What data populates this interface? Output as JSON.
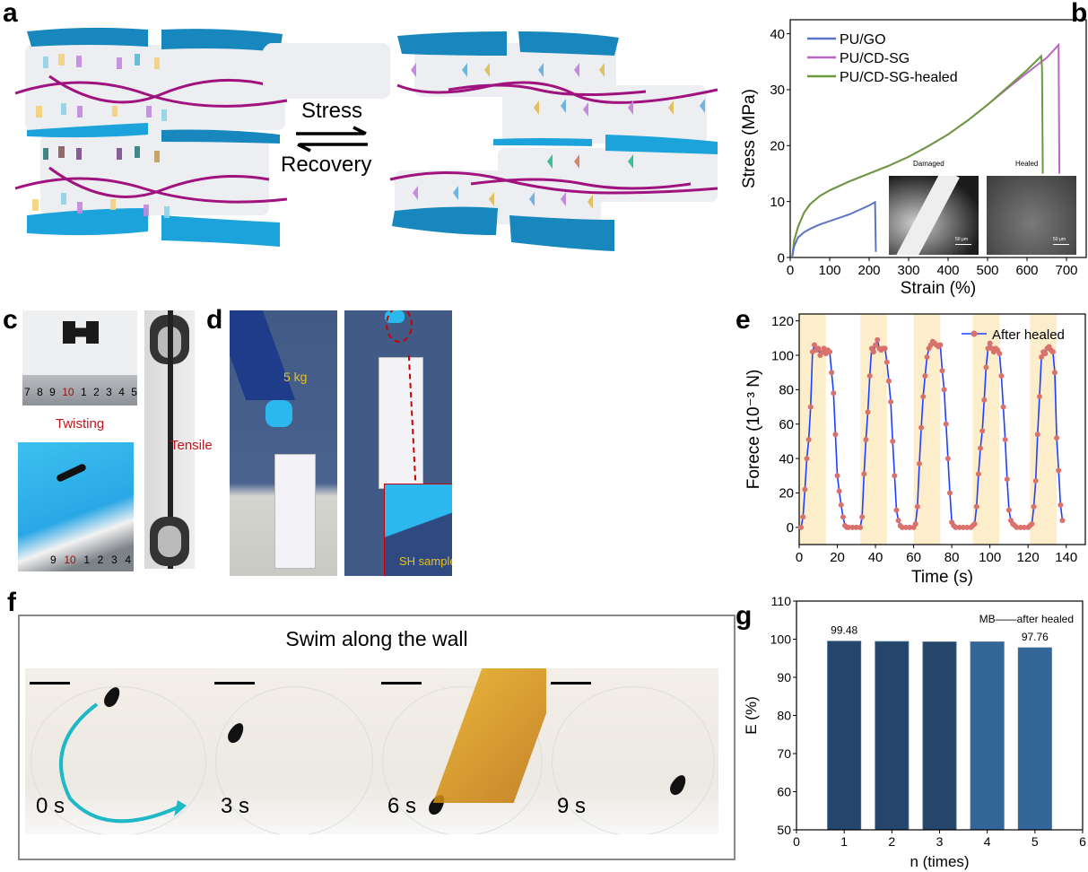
{
  "panels": {
    "a": {
      "label": "a",
      "arrow_top": "Stress",
      "arrow_bottom": "Recovery"
    },
    "b": {
      "label": "b",
      "inset_damaged": "Damaged",
      "inset_healed": "Healed",
      "scale_bar": "50 μm"
    },
    "c": {
      "label": "c",
      "twisting": "Twisting",
      "tensile": "Tensile",
      "ruler_top": [
        "7",
        "8",
        "9",
        "10",
        "1",
        "2",
        "3",
        "4",
        "5"
      ],
      "ruler_bottom": [
        "9",
        "10",
        "1",
        "2",
        "3",
        "4"
      ]
    },
    "d": {
      "label": "d",
      "weight": "5 kg",
      "inset": "SH sample"
    },
    "e": {
      "label": "e"
    },
    "f": {
      "label": "f",
      "title": "Swim along the wall",
      "frames": [
        "0 s",
        "3 s",
        "6 s",
        "9 s"
      ]
    },
    "g": {
      "label": "g"
    }
  },
  "colors": {
    "pu_go": "#5b74c4",
    "pu_cd_sg": "#b866c2",
    "pu_cd_sg_healed": "#6b9a3c",
    "force_line": "#1f3fff",
    "force_marker": "#d9716c",
    "shade": "#fdeecb",
    "bar_dark": "#24466a",
    "bar_light": "#336699",
    "tape_blue": "#1a9ad6",
    "chain": "#a0127e"
  },
  "chart_data": [
    {
      "id": "b",
      "type": "line",
      "xlabel": "Strain (%)",
      "ylabel": "Stress (MPa)",
      "xlim": [
        0,
        750
      ],
      "ylim": [
        0,
        42.5
      ],
      "xticks": [
        0,
        100,
        200,
        300,
        400,
        500,
        600,
        700
      ],
      "yticks": [
        0,
        10,
        20,
        30,
        40
      ],
      "legend": "top-left",
      "series": [
        {
          "name": "PU/GO",
          "x": [
            5,
            10,
            20,
            35,
            50,
            75,
            100,
            150,
            200,
            215,
            217
          ],
          "y": [
            0,
            2,
            3.6,
            4.5,
            5.1,
            5.9,
            6.5,
            7.7,
            9.3,
            9.9,
            1
          ]
        },
        {
          "name": "PU/CD-SG",
          "x": [
            5,
            10,
            20,
            35,
            50,
            75,
            100,
            150,
            200,
            250,
            300,
            350,
            400,
            450,
            500,
            550,
            600,
            650,
            680,
            682
          ],
          "y": [
            0,
            3,
            5.5,
            8,
            9.5,
            11,
            12,
            13.6,
            15,
            16.4,
            18,
            19.9,
            22,
            24.5,
            27.3,
            30.2,
            33,
            35.7,
            38,
            15
          ]
        },
        {
          "name": "PU/CD-SG-healed",
          "x": [
            5,
            10,
            20,
            35,
            50,
            75,
            100,
            150,
            200,
            250,
            300,
            350,
            400,
            450,
            500,
            550,
            600,
            636,
            638,
            639,
            640
          ],
          "y": [
            0,
            3,
            5.5,
            8,
            9.5,
            11,
            12,
            13.6,
            15,
            16.4,
            18,
            19.9,
            22,
            24.5,
            27.3,
            30.4,
            33.5,
            36,
            34,
            25,
            15
          ]
        }
      ]
    },
    {
      "id": "e",
      "type": "line",
      "xlabel": "Time (s)",
      "ylabel": "Forece (10⁻³ N)",
      "xlim": [
        0,
        150
      ],
      "ylim": [
        -10,
        124
      ],
      "xticks": [
        0,
        20,
        40,
        60,
        80,
        100,
        120,
        140
      ],
      "yticks": [
        0,
        20,
        40,
        60,
        80,
        100,
        120
      ],
      "shaded_intervals": [
        [
          0,
          14
        ],
        [
          32,
          46
        ],
        [
          60,
          74
        ],
        [
          91,
          105
        ],
        [
          121,
          135
        ]
      ],
      "legend": "top-right",
      "series": [
        {
          "name": "After healed",
          "x": [
            1,
            2,
            3,
            4,
            5,
            6,
            7,
            8,
            9,
            10,
            11,
            12,
            13,
            14,
            15,
            16,
            17,
            18,
            19,
            20,
            21,
            22,
            23,
            24,
            25,
            26,
            28,
            30,
            32,
            33,
            34,
            35,
            36,
            37,
            38,
            39,
            40,
            41,
            42,
            43,
            44,
            45,
            46,
            47,
            48,
            49,
            50,
            51,
            52,
            53,
            54,
            56,
            58,
            60,
            61,
            62,
            63,
            64,
            65,
            66,
            67,
            68,
            69,
            70,
            71,
            72,
            73,
            74,
            75,
            76,
            77,
            78,
            79,
            80,
            81,
            82,
            84,
            86,
            88,
            90,
            91,
            92,
            93,
            94,
            95,
            96,
            97,
            98,
            99,
            100,
            101,
            102,
            103,
            104,
            105,
            106,
            107,
            108,
            109,
            110,
            111,
            112,
            113,
            114,
            116,
            118,
            120,
            121,
            122,
            123,
            124,
            125,
            126,
            127,
            128,
            129,
            130,
            131,
            132,
            133,
            134,
            135,
            136,
            137,
            138
          ],
          "y": [
            0,
            6,
            22,
            40,
            51,
            70,
            102,
            106,
            103,
            104,
            100,
            102,
            104,
            101,
            103,
            102,
            90,
            78,
            54,
            30,
            21,
            13,
            6,
            1,
            0,
            0,
            0,
            0,
            0,
            6,
            31,
            51,
            67,
            88,
            104,
            102,
            106,
            109,
            104,
            103,
            104,
            104,
            96,
            85,
            73,
            50,
            30,
            10,
            4,
            1,
            0,
            0,
            0,
            0,
            2,
            12,
            37,
            58,
            76,
            88,
            99,
            104,
            106,
            108,
            107,
            106,
            105,
            106,
            91,
            80,
            60,
            40,
            20,
            3,
            1,
            0,
            0,
            0,
            0,
            0,
            1,
            2,
            12,
            31,
            46,
            56,
            74,
            93,
            104,
            107,
            104,
            102,
            104,
            103,
            101,
            88,
            70,
            51,
            28,
            10,
            4,
            2,
            1,
            0,
            0,
            0,
            0,
            1,
            2,
            12,
            27,
            54,
            76,
            99,
            102,
            101,
            104,
            105,
            103,
            102,
            90,
            52,
            33,
            13,
            4
          ]
        }
      ]
    },
    {
      "id": "g",
      "type": "bar",
      "xlabel": "n (times)",
      "ylabel": "E (%)",
      "xlim": [
        0,
        6
      ],
      "ylim": [
        50,
        110
      ],
      "xticks": [
        0,
        1,
        2,
        3,
        4,
        5,
        6
      ],
      "yticks": [
        50,
        60,
        70,
        80,
        90,
        100,
        110
      ],
      "categories": [
        1,
        2,
        3,
        4,
        5
      ],
      "values": [
        99.48,
        99.4,
        99.3,
        99.3,
        97.76
      ],
      "data_labels": [
        {
          "x": 1,
          "text": "99.48"
        },
        {
          "x": 5,
          "text": "97.76"
        }
      ],
      "annotation": "MB——after healed"
    }
  ]
}
